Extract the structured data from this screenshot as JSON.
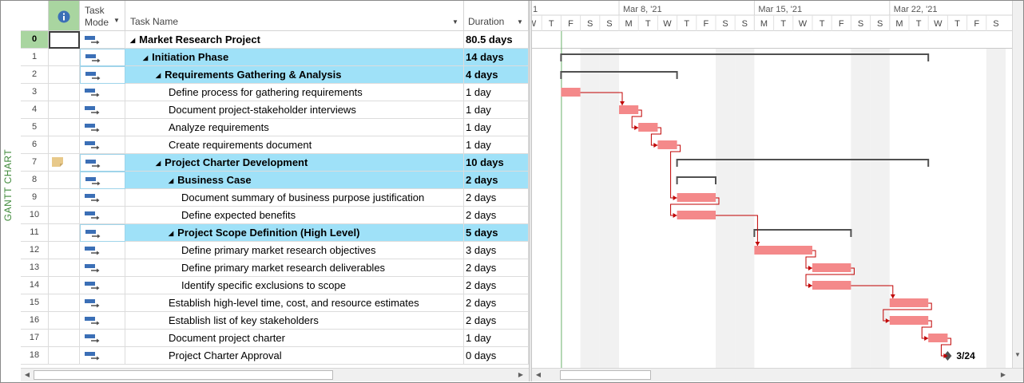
{
  "view_label": "GANTT CHART",
  "columns": {
    "indicators_icon": "info-icon",
    "task_mode_line1": "Task",
    "task_mode_line2": "Mode",
    "task_name": "Task Name",
    "duration": "Duration"
  },
  "tasks": [
    {
      "id": "0",
      "name": "Market Research Project",
      "duration": "80.5 days",
      "level": 0,
      "summary": true,
      "highlight": false,
      "note": false
    },
    {
      "id": "1",
      "name": "Initiation Phase",
      "duration": "14 days",
      "level": 1,
      "summary": true,
      "highlight": true,
      "note": false
    },
    {
      "id": "2",
      "name": "Requirements Gathering & Analysis",
      "duration": "4 days",
      "level": 2,
      "summary": true,
      "highlight": true,
      "note": false
    },
    {
      "id": "3",
      "name": "Define process for gathering requirements",
      "duration": "1 day",
      "level": 3,
      "summary": false,
      "highlight": false,
      "note": false
    },
    {
      "id": "4",
      "name": "Document project-stakeholder interviews",
      "duration": "1 day",
      "level": 3,
      "summary": false,
      "highlight": false,
      "note": false
    },
    {
      "id": "5",
      "name": "Analyze requirements",
      "duration": "1 day",
      "level": 3,
      "summary": false,
      "highlight": false,
      "note": false
    },
    {
      "id": "6",
      "name": "Create requirements document",
      "duration": "1 day",
      "level": 3,
      "summary": false,
      "highlight": false,
      "note": false
    },
    {
      "id": "7",
      "name": "Project Charter Development",
      "duration": "10 days",
      "level": 2,
      "summary": true,
      "highlight": true,
      "note": true
    },
    {
      "id": "8",
      "name": "Business Case",
      "duration": "2 days",
      "level": 3,
      "summary": true,
      "highlight": true,
      "note": false
    },
    {
      "id": "9",
      "name": "Document summary of business purpose justification",
      "duration": "2 days",
      "level": 4,
      "summary": false,
      "highlight": false,
      "note": false
    },
    {
      "id": "10",
      "name": "Define expected benefits",
      "duration": "2 days",
      "level": 4,
      "summary": false,
      "highlight": false,
      "note": false
    },
    {
      "id": "11",
      "name": "Project Scope Definition (High Level)",
      "duration": "5 days",
      "level": 3,
      "summary": true,
      "highlight": true,
      "note": false
    },
    {
      "id": "12",
      "name": "Define primary market research objectives",
      "duration": "3 days",
      "level": 4,
      "summary": false,
      "highlight": false,
      "note": false
    },
    {
      "id": "13",
      "name": "Define primary market research deliverables",
      "duration": "2 days",
      "level": 4,
      "summary": false,
      "highlight": false,
      "note": false
    },
    {
      "id": "14",
      "name": "Identify specific exclusions to scope",
      "duration": "2 days",
      "level": 4,
      "summary": false,
      "highlight": false,
      "note": false
    },
    {
      "id": "15",
      "name": "Establish high-level time, cost, and resource estimates",
      "duration": "2 days",
      "level": 3,
      "summary": false,
      "highlight": false,
      "note": false
    },
    {
      "id": "16",
      "name": "Establish list of key stakeholders",
      "duration": "2 days",
      "level": 3,
      "summary": false,
      "highlight": false,
      "note": false
    },
    {
      "id": "17",
      "name": "Document project charter",
      "duration": "1 day",
      "level": 3,
      "summary": false,
      "highlight": false,
      "note": false
    },
    {
      "id": "18",
      "name": "Project Charter Approval",
      "duration": "0 days",
      "level": 3,
      "summary": false,
      "highlight": false,
      "note": false
    }
  ],
  "timescale": {
    "weeks": [
      "1",
      "Mar 8, '21",
      "Mar 15, '21",
      "Mar 22, '21"
    ],
    "days": [
      "W",
      "T",
      "F",
      "S",
      "S",
      "M",
      "T",
      "W",
      "T",
      "F",
      "S",
      "S",
      "M",
      "T",
      "W",
      "T",
      "F",
      "S",
      "S",
      "M",
      "T",
      "W",
      "T",
      "F",
      "S"
    ]
  },
  "gantt_bars": [
    {
      "task": "1",
      "kind": "summary",
      "start_day": 2,
      "end_day": 21
    },
    {
      "task": "2",
      "kind": "summary",
      "start_day": 2,
      "end_day": 8
    },
    {
      "task": "3",
      "kind": "task",
      "start_day": 2,
      "end_day": 3
    },
    {
      "task": "4",
      "kind": "task",
      "start_day": 5,
      "end_day": 6
    },
    {
      "task": "5",
      "kind": "task",
      "start_day": 6,
      "end_day": 7
    },
    {
      "task": "6",
      "kind": "task",
      "start_day": 7,
      "end_day": 8
    },
    {
      "task": "7",
      "kind": "summary",
      "start_day": 8,
      "end_day": 21
    },
    {
      "task": "8",
      "kind": "summary",
      "start_day": 8,
      "end_day": 10
    },
    {
      "task": "9",
      "kind": "task",
      "start_day": 8,
      "end_day": 10
    },
    {
      "task": "10",
      "kind": "task",
      "start_day": 8,
      "end_day": 10
    },
    {
      "task": "11",
      "kind": "summary",
      "start_day": 12,
      "end_day": 17
    },
    {
      "task": "12",
      "kind": "task",
      "start_day": 12,
      "end_day": 15
    },
    {
      "task": "13",
      "kind": "task",
      "start_day": 15,
      "end_day": 17
    },
    {
      "task": "14",
      "kind": "task",
      "start_day": 15,
      "end_day": 17
    },
    {
      "task": "15",
      "kind": "task",
      "start_day": 19,
      "end_day": 21
    },
    {
      "task": "16",
      "kind": "task",
      "start_day": 19,
      "end_day": 21
    },
    {
      "task": "17",
      "kind": "task",
      "start_day": 21,
      "end_day": 22
    },
    {
      "task": "18",
      "kind": "milestone",
      "start_day": 22,
      "end_day": 22
    }
  ],
  "milestone_label": "3/24",
  "colors": {
    "task_bar": "#f4898a",
    "link": "#c00000",
    "summary_bar": "#505050",
    "row_highlight": "#9fe1f8",
    "selected_id": "#a9d5a0",
    "weekend": "#f1f1f1",
    "view_label": "#3f8a3a"
  }
}
